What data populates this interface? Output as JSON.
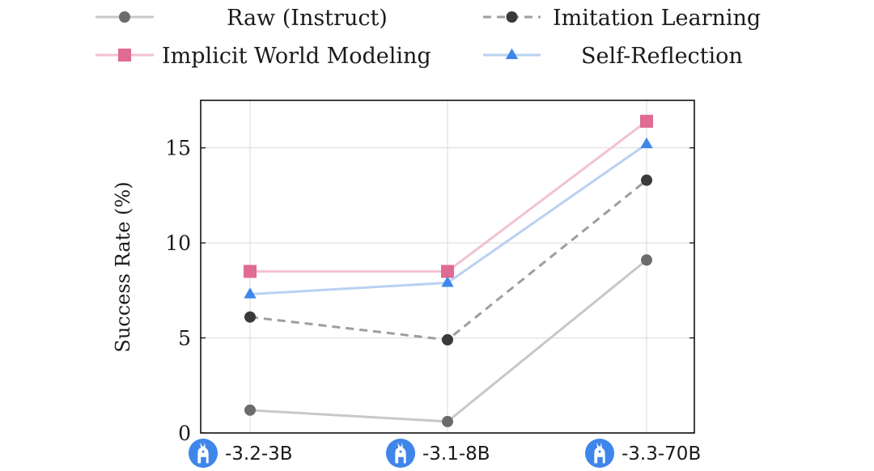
{
  "colors": {
    "raw": "#c8c8c8",
    "raw_marker": "#6b6b6b",
    "imitation": "#9e9e9e",
    "imitation_marker": "#3a3a3a",
    "implicit": "#f2c2cf",
    "implicit_marker": "#e06b93",
    "reflection": "#b9d1f2",
    "reflection_marker": "#3f86ea",
    "llama_icon": "#3f86ea",
    "grid": "#d9d9d9",
    "axis": "#000000"
  },
  "chart_data": {
    "type": "line",
    "title": "",
    "xlabel": "",
    "ylabel": "Success Rate (%)",
    "ylim": [
      0,
      17.5
    ],
    "yticks": [
      0,
      5,
      10,
      15
    ],
    "grid": true,
    "legend_position": "top",
    "categories": [
      "-3.2-3B",
      "-3.1-8B",
      "-3.3-70B"
    ],
    "category_icon": "llama-icon",
    "series": [
      {
        "key": "raw",
        "name": "Raw (Instruct)",
        "marker": "circle",
        "dashed": false,
        "values": [
          1.2,
          0.6,
          9.1
        ]
      },
      {
        "key": "imitation",
        "name": "Imitation Learning",
        "marker": "circle",
        "dashed": true,
        "values": [
          6.1,
          4.9,
          13.3
        ]
      },
      {
        "key": "implicit",
        "name": "Implicit World Modeling",
        "marker": "square",
        "dashed": false,
        "values": [
          8.5,
          8.5,
          16.4
        ]
      },
      {
        "key": "reflection",
        "name": "Self-Reflection",
        "marker": "triangle",
        "dashed": false,
        "values": [
          7.3,
          7.9,
          15.2
        ]
      }
    ]
  }
}
